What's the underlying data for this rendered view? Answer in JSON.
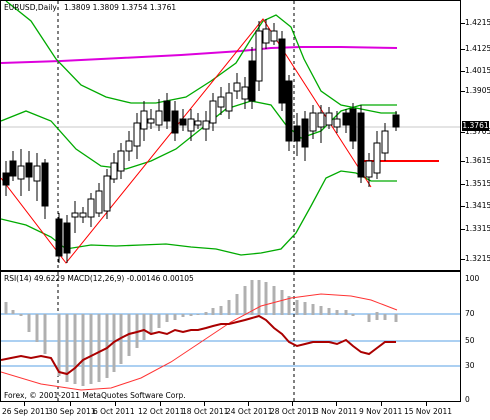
{
  "chart_header": {
    "symbol_timeframe": "EURUSD,Daily",
    "ohlc": "1.3809 1.3809 1.3754 1.3761"
  },
  "indicator_header": {
    "text": "RSI(14) 49.6229 MACD(12,26,9) -0.00146 0.00105"
  },
  "copyright": "Forex, © 2001-2011 MetaQuotes Software Corp.",
  "price_axis": {
    "labels": [
      "1.4215",
      "1.4125",
      "1.4015",
      "1.3905",
      "1.3761",
      "1.3705",
      "1.3615",
      "1.3515",
      "1.3415",
      "1.3315",
      "1.3215"
    ],
    "current_price": "1.3761"
  },
  "indicator_axis": {
    "labels": [
      "100",
      "70",
      "50",
      "30",
      "0"
    ]
  },
  "date_axis": {
    "labels": [
      "26 Sep 2011",
      "30 Sep 2011",
      "6 Oct 2011",
      "12 Oct 2011",
      "18 Oct 2011",
      "24 Oct 2011",
      "28 Oct 2011",
      "3 Nov 2011",
      "9 Nov 2011",
      "15 Nov 2011"
    ]
  },
  "colors": {
    "bollinger": "#00aa00",
    "ma_long": "#dd00dd",
    "zigzag": "#ff0000",
    "rsi": "#aa0000",
    "macd_signal": "#ff3333",
    "histogram": "#b0b0b0",
    "levels": "#5aa0e6"
  }
}
